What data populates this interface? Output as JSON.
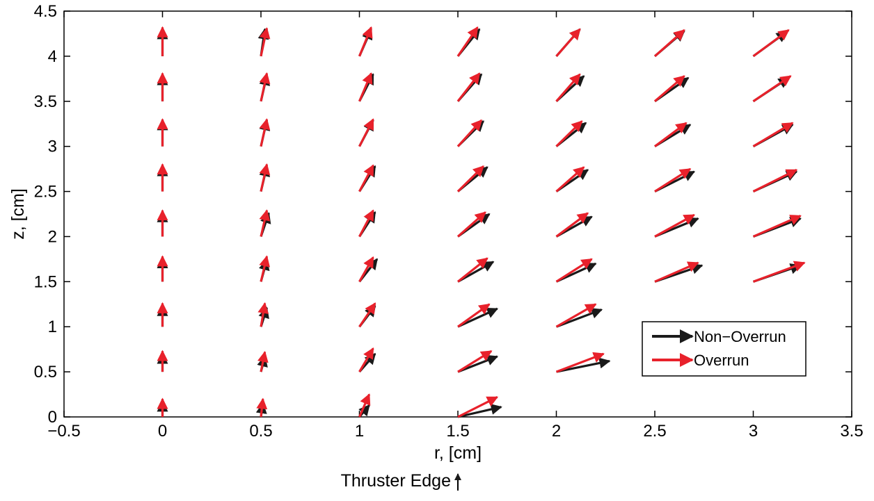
{
  "chart_data": {
    "type": "quiver",
    "xlabel": "r, [cm]",
    "ylabel": "z, [cm]",
    "xlim": [
      -0.5,
      3.5
    ],
    "ylim": [
      0,
      4.5
    ],
    "xticks": [
      -0.5,
      0,
      0.5,
      1,
      1.5,
      2,
      2.5,
      3,
      3.5
    ],
    "xtick_labels": [
      "−0.5",
      "0",
      "0.5",
      "1",
      "1.5",
      "2",
      "2.5",
      "3",
      "3.5"
    ],
    "yticks": [
      0,
      0.5,
      1,
      1.5,
      2,
      2.5,
      3,
      3.5,
      4,
      4.5
    ],
    "ytick_labels": [
      "0",
      "0.5",
      "1",
      "1.5",
      "2",
      "2.5",
      "3",
      "3.5",
      "4",
      "4.5"
    ],
    "grid": false,
    "legend_position": "right",
    "annotation": {
      "text": "Thruster Edge",
      "points_to_x": 1.5
    },
    "series": [
      {
        "name": "Non−Overrun",
        "color": "#1a1a1a",
        "vectors": [
          {
            "x": 0,
            "y": 0,
            "u": 0,
            "v": 0.17
          },
          {
            "x": 0,
            "y": 0.5,
            "u": 0,
            "v": 0.2
          },
          {
            "x": 0,
            "y": 1,
            "u": 0,
            "v": 0.23
          },
          {
            "x": 0,
            "y": 1.5,
            "u": 0,
            "v": 0.26
          },
          {
            "x": 0,
            "y": 2,
            "u": 0,
            "v": 0.27
          },
          {
            "x": 0,
            "y": 2.5,
            "u": 0,
            "v": 0.28
          },
          {
            "x": 0,
            "y": 3,
            "u": 0,
            "v": 0.29
          },
          {
            "x": 0,
            "y": 3.5,
            "u": 0,
            "v": 0.29
          },
          {
            "x": 0,
            "y": 4,
            "u": 0,
            "v": 0.3
          },
          {
            "x": 0.5,
            "y": 0,
            "u": 0.01,
            "v": 0.15
          },
          {
            "x": 0.5,
            "y": 0.5,
            "u": 0.02,
            "v": 0.17
          },
          {
            "x": 0.5,
            "y": 1,
            "u": 0.03,
            "v": 0.21
          },
          {
            "x": 0.5,
            "y": 1.5,
            "u": 0.03,
            "v": 0.24
          },
          {
            "x": 0.5,
            "y": 2,
            "u": 0.04,
            "v": 0.26
          },
          {
            "x": 0.5,
            "y": 2.5,
            "u": 0.03,
            "v": 0.28
          },
          {
            "x": 0.5,
            "y": 3,
            "u": 0.03,
            "v": 0.29
          },
          {
            "x": 0.5,
            "y": 3.5,
            "u": 0.03,
            "v": 0.29
          },
          {
            "x": 0.5,
            "y": 4,
            "u": 0.02,
            "v": 0.3
          },
          {
            "x": 1,
            "y": 0,
            "u": 0.05,
            "v": 0.13
          },
          {
            "x": 1,
            "y": 0.5,
            "u": 0.08,
            "v": 0.2
          },
          {
            "x": 1,
            "y": 1,
            "u": 0.08,
            "v": 0.23
          },
          {
            "x": 1,
            "y": 1.5,
            "u": 0.09,
            "v": 0.25
          },
          {
            "x": 1,
            "y": 2,
            "u": 0.08,
            "v": 0.27
          },
          {
            "x": 1,
            "y": 2.5,
            "u": 0.08,
            "v": 0.28
          },
          {
            "x": 1,
            "y": 3,
            "u": 0.07,
            "v": 0.29
          },
          {
            "x": 1,
            "y": 3.5,
            "u": 0.07,
            "v": 0.3
          },
          {
            "x": 1,
            "y": 4,
            "u": 0.06,
            "v": 0.3
          },
          {
            "x": 1.5,
            "y": 0,
            "u": 0.22,
            "v": 0.11
          },
          {
            "x": 1.5,
            "y": 0.5,
            "u": 0.2,
            "v": 0.17
          },
          {
            "x": 1.5,
            "y": 1,
            "u": 0.2,
            "v": 0.2
          },
          {
            "x": 1.5,
            "y": 1.5,
            "u": 0.18,
            "v": 0.22
          },
          {
            "x": 1.5,
            "y": 2,
            "u": 0.16,
            "v": 0.25
          },
          {
            "x": 1.5,
            "y": 2.5,
            "u": 0.15,
            "v": 0.27
          },
          {
            "x": 1.5,
            "y": 3,
            "u": 0.13,
            "v": 0.28
          },
          {
            "x": 1.5,
            "y": 3.5,
            "u": 0.12,
            "v": 0.3
          },
          {
            "x": 1.5,
            "y": 4,
            "u": 0.11,
            "v": 0.3
          },
          {
            "x": 2,
            "y": 0.5,
            "u": 0.27,
            "v": 0.12
          },
          {
            "x": 2,
            "y": 1,
            "u": 0.23,
            "v": 0.19
          },
          {
            "x": 2,
            "y": 1.5,
            "u": 0.2,
            "v": 0.2
          },
          {
            "x": 2,
            "y": 2,
            "u": 0.18,
            "v": 0.22
          },
          {
            "x": 2,
            "y": 2.5,
            "u": 0.16,
            "v": 0.24
          },
          {
            "x": 2,
            "y": 3,
            "u": 0.15,
            "v": 0.26
          },
          {
            "x": 2,
            "y": 3.5,
            "u": 0.14,
            "v": 0.28
          },
          {
            "x": 2,
            "y": 4,
            "u": 0.12,
            "v": 0.3
          },
          {
            "x": 2.5,
            "y": 1.5,
            "u": 0.24,
            "v": 0.18
          },
          {
            "x": 2.5,
            "y": 2,
            "u": 0.22,
            "v": 0.2
          },
          {
            "x": 2.5,
            "y": 2.5,
            "u": 0.2,
            "v": 0.22
          },
          {
            "x": 2.5,
            "y": 3,
            "u": 0.18,
            "v": 0.24
          },
          {
            "x": 2.5,
            "y": 3.5,
            "u": 0.17,
            "v": 0.26
          },
          {
            "x": 2.5,
            "y": 4,
            "u": 0.15,
            "v": 0.28
          },
          {
            "x": 3,
            "y": 1.5,
            "u": 0.24,
            "v": 0.18
          },
          {
            "x": 3,
            "y": 2,
            "u": 0.24,
            "v": 0.2
          },
          {
            "x": 3,
            "y": 2.5,
            "u": 0.22,
            "v": 0.22
          },
          {
            "x": 3,
            "y": 3,
            "u": 0.2,
            "v": 0.24
          },
          {
            "x": 3,
            "y": 3.5,
            "u": 0.18,
            "v": 0.26
          },
          {
            "x": 3,
            "y": 4,
            "u": 0.17,
            "v": 0.27
          }
        ]
      },
      {
        "name": "Overrun",
        "color": "#e8212b",
        "vectors": [
          {
            "x": 0,
            "y": 0,
            "u": 0,
            "v": 0.2
          },
          {
            "x": 0,
            "y": 0.5,
            "u": 0,
            "v": 0.23
          },
          {
            "x": 0,
            "y": 1,
            "u": 0,
            "v": 0.26
          },
          {
            "x": 0,
            "y": 1.5,
            "u": 0,
            "v": 0.28
          },
          {
            "x": 0,
            "y": 2,
            "u": 0,
            "v": 0.29
          },
          {
            "x": 0,
            "y": 2.5,
            "u": 0,
            "v": 0.3
          },
          {
            "x": 0,
            "y": 3,
            "u": 0,
            "v": 0.3
          },
          {
            "x": 0,
            "y": 3.5,
            "u": 0,
            "v": 0.31
          },
          {
            "x": 0,
            "y": 4,
            "u": 0,
            "v": 0.32
          },
          {
            "x": 0.5,
            "y": 0,
            "u": 0.01,
            "v": 0.2
          },
          {
            "x": 0.5,
            "y": 0.5,
            "u": 0.02,
            "v": 0.22
          },
          {
            "x": 0.5,
            "y": 1,
            "u": 0.02,
            "v": 0.26
          },
          {
            "x": 0.5,
            "y": 1.5,
            "u": 0.03,
            "v": 0.28
          },
          {
            "x": 0.5,
            "y": 2,
            "u": 0.03,
            "v": 0.29
          },
          {
            "x": 0.5,
            "y": 2.5,
            "u": 0.03,
            "v": 0.3
          },
          {
            "x": 0.5,
            "y": 3,
            "u": 0.03,
            "v": 0.3
          },
          {
            "x": 0.5,
            "y": 3.5,
            "u": 0.03,
            "v": 0.31
          },
          {
            "x": 0.5,
            "y": 4,
            "u": 0.03,
            "v": 0.31
          },
          {
            "x": 1,
            "y": 0,
            "u": 0.05,
            "v": 0.25
          },
          {
            "x": 1,
            "y": 0.5,
            "u": 0.07,
            "v": 0.26
          },
          {
            "x": 1,
            "y": 1,
            "u": 0.08,
            "v": 0.26
          },
          {
            "x": 1,
            "y": 1.5,
            "u": 0.07,
            "v": 0.27
          },
          {
            "x": 1,
            "y": 2,
            "u": 0.07,
            "v": 0.29
          },
          {
            "x": 1,
            "y": 2.5,
            "u": 0.07,
            "v": 0.29
          },
          {
            "x": 1,
            "y": 3,
            "u": 0.07,
            "v": 0.3
          },
          {
            "x": 1,
            "y": 3.5,
            "u": 0.06,
            "v": 0.31
          },
          {
            "x": 1,
            "y": 4,
            "u": 0.06,
            "v": 0.32
          },
          {
            "x": 1.5,
            "y": 0,
            "u": 0.2,
            "v": 0.22
          },
          {
            "x": 1.5,
            "y": 0.5,
            "u": 0.17,
            "v": 0.23
          },
          {
            "x": 1.5,
            "y": 1,
            "u": 0.16,
            "v": 0.25
          },
          {
            "x": 1.5,
            "y": 1.5,
            "u": 0.15,
            "v": 0.26
          },
          {
            "x": 1.5,
            "y": 2,
            "u": 0.14,
            "v": 0.27
          },
          {
            "x": 1.5,
            "y": 2.5,
            "u": 0.13,
            "v": 0.28
          },
          {
            "x": 1.5,
            "y": 3,
            "u": 0.12,
            "v": 0.29
          },
          {
            "x": 1.5,
            "y": 3.5,
            "u": 0.11,
            "v": 0.31
          },
          {
            "x": 1.5,
            "y": 4,
            "u": 0.1,
            "v": 0.32
          },
          {
            "x": 2,
            "y": 0.5,
            "u": 0.24,
            "v": 0.2
          },
          {
            "x": 2,
            "y": 1,
            "u": 0.2,
            "v": 0.25
          },
          {
            "x": 2,
            "y": 1.5,
            "u": 0.18,
            "v": 0.25
          },
          {
            "x": 2,
            "y": 2,
            "u": 0.16,
            "v": 0.26
          },
          {
            "x": 2,
            "y": 2.5,
            "u": 0.14,
            "v": 0.27
          },
          {
            "x": 2,
            "y": 3,
            "u": 0.13,
            "v": 0.28
          },
          {
            "x": 2,
            "y": 3.5,
            "u": 0.12,
            "v": 0.3
          },
          {
            "x": 2,
            "y": 4,
            "u": 0.12,
            "v": 0.3
          },
          {
            "x": 2.5,
            "y": 1.5,
            "u": 0.22,
            "v": 0.21
          },
          {
            "x": 2.5,
            "y": 2,
            "u": 0.2,
            "v": 0.24
          },
          {
            "x": 2.5,
            "y": 2.5,
            "u": 0.18,
            "v": 0.25
          },
          {
            "x": 2.5,
            "y": 3,
            "u": 0.16,
            "v": 0.26
          },
          {
            "x": 2.5,
            "y": 3.5,
            "u": 0.15,
            "v": 0.28
          },
          {
            "x": 2.5,
            "y": 4,
            "u": 0.15,
            "v": 0.29
          },
          {
            "x": 3,
            "y": 1.5,
            "u": 0.26,
            "v": 0.21
          },
          {
            "x": 3,
            "y": 2,
            "u": 0.24,
            "v": 0.23
          },
          {
            "x": 3,
            "y": 2.5,
            "u": 0.22,
            "v": 0.24
          },
          {
            "x": 3,
            "y": 3,
            "u": 0.2,
            "v": 0.26
          },
          {
            "x": 3,
            "y": 3.5,
            "u": 0.19,
            "v": 0.28
          },
          {
            "x": 3,
            "y": 4,
            "u": 0.18,
            "v": 0.29
          }
        ]
      }
    ]
  }
}
